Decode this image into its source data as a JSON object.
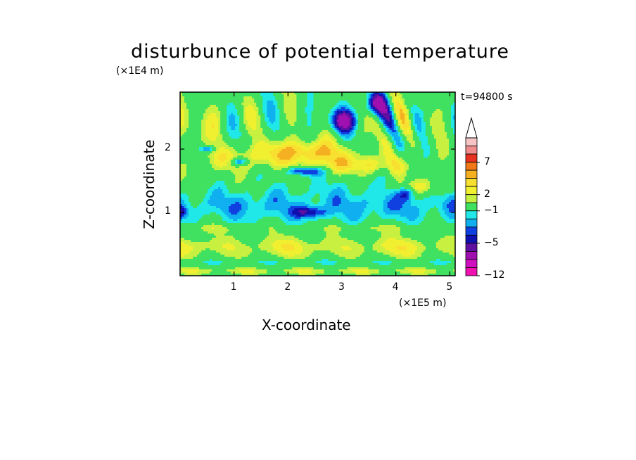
{
  "chart_data": {
    "type": "heatmap",
    "title": "disturbunce of potential temperature",
    "xlabel": "X-coordinate",
    "ylabel": "Z-coordinate",
    "x_unit": "(×1E5 m)",
    "y_unit": "(×1E4 m)",
    "time_label": "t=94800 s",
    "xlim": [
      0,
      5.1
    ],
    "ylim": [
      0,
      2.9
    ],
    "x_ticks": [
      "1",
      "2",
      "3",
      "4",
      "5"
    ],
    "y_ticks": [
      "1",
      "2"
    ],
    "x_tick_values": [
      1,
      2,
      3,
      4,
      5
    ],
    "y_tick_values": [
      1,
      2
    ],
    "colorbar": {
      "labels": [
        "7",
        "2",
        "−1",
        "−5",
        "−12"
      ],
      "levels": [
        9,
        8,
        7,
        6,
        5,
        4,
        3,
        2,
        1,
        -1,
        -2,
        -3,
        -4,
        -5,
        -6,
        -8,
        -10,
        -12
      ],
      "colors": [
        "#f7c4c4",
        "#f08c8c",
        "#e63020",
        "#f07818",
        "#f4b020",
        "#f8e030",
        "#f0f030",
        "#c8f040",
        "#40e060",
        "#20e8e8",
        "#10b0f0",
        "#1040e0",
        "#1010b0",
        "#6010a0",
        "#a010b0",
        "#d010c0",
        "#f010b0"
      ],
      "extend_max": true
    },
    "field_description": "2D contour field on a grid of x (0-5.1) by z (0-2.9)",
    "colors": {
      "background": "#ffffff",
      "frame": "#000000"
    }
  }
}
